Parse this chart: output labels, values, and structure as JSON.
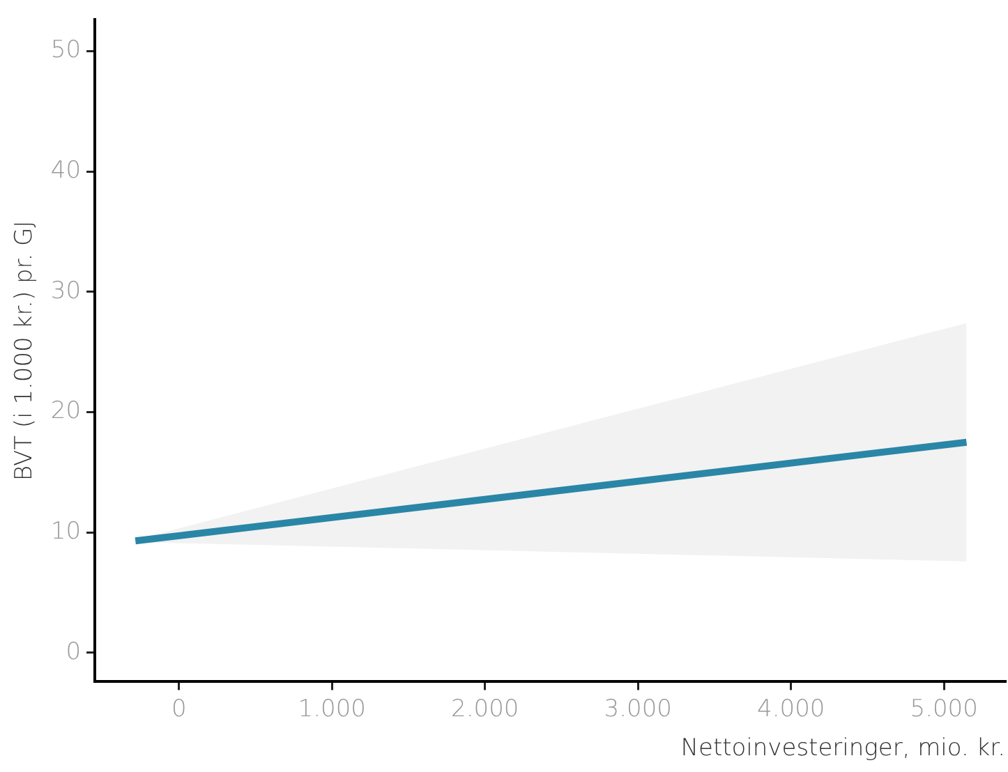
{
  "chart_data": {
    "type": "line",
    "xlabel": "Nettoinvesteringer, mio. kr.",
    "ylabel": "BVT (i 1.000 kr.) pr. GJ",
    "x": [
      -285,
      5147
    ],
    "series": [
      {
        "color": "#2a86a6",
        "values": [
          9.3,
          17.5
        ],
        "lower": [
          9.2,
          7.6
        ],
        "upper": [
          9.4,
          27.4
        ]
      }
    ],
    "xlim": [
      -550,
      5400
    ],
    "xticks": [
      0,
      {
        "value": 1000,
        "label": "1.000"
      },
      {
        "value": 2000,
        "label": "2.000"
      },
      {
        "value": 3000,
        "label": "3.000"
      },
      {
        "value": 4000,
        "label": "4.000"
      },
      {
        "value": 5000,
        "label": "5.000"
      }
    ],
    "ylim": [
      -2.4,
      52.6
    ],
    "yticks": [
      0,
      10,
      20,
      30,
      40,
      50
    ],
    "grid": false,
    "legend": false,
    "marker": "none",
    "line_style": "solid"
  }
}
